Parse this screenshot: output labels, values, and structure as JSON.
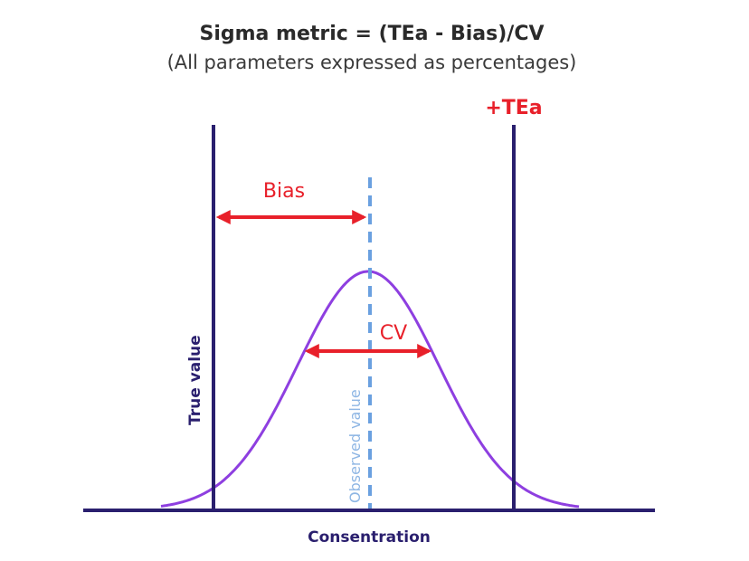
{
  "title": "Sigma metric = (TEa - Bias)/CV",
  "subtitle": "(All parameters expressed as percentages)",
  "labels": {
    "tea": "+TEa",
    "bias": "Bias",
    "cv": "CV",
    "true_value": "True value",
    "observed_value": "Observed value",
    "x_axis": "Consentration"
  },
  "colors": {
    "axis": "#2a1f6e",
    "curve": "#8e3fe0",
    "arrow": "#e8202a",
    "observed": "#6aa0e0",
    "text": "#2a2a2a"
  }
}
